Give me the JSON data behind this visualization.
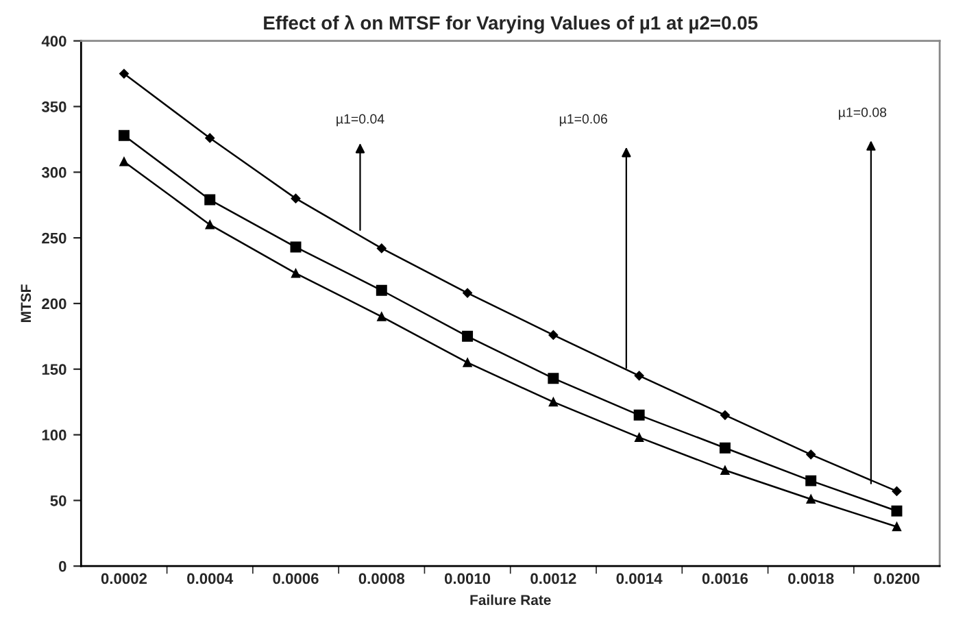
{
  "chart_data": {
    "type": "line",
    "title": "Effect of λ on MTSF for Varying Values of µ1 at µ2=0.05",
    "xlabel": "Failure Rate",
    "ylabel": "MTSF",
    "categories": [
      "0.0002",
      "0.0004",
      "0.0006",
      "0.0008",
      "0.0010",
      "0.0012",
      "0.0014",
      "0.0016",
      "0.0018",
      "0.0200"
    ],
    "series": [
      {
        "color": "#000000",
        "marker": "diamond",
        "values": [
          375,
          326,
          280,
          242,
          208,
          176,
          145,
          115,
          85,
          57
        ]
      },
      {
        "color": "#000000",
        "marker": "square",
        "values": [
          328,
          279,
          243,
          210,
          175,
          143,
          115,
          90,
          65,
          42
        ]
      },
      {
        "color": "#000000",
        "marker": "triangle",
        "values": [
          308,
          260,
          223,
          190,
          155,
          125,
          98,
          73,
          51,
          30
        ]
      }
    ],
    "ylim": [
      0,
      400
    ],
    "yticks": [
      0,
      50,
      100,
      150,
      200,
      250,
      300,
      350,
      400
    ],
    "annotations": [
      "µ1=0.04",
      "µ1=0.06",
      "µ1=0.08"
    ],
    "grid": false,
    "legend": false,
    "line_style": "solid"
  }
}
